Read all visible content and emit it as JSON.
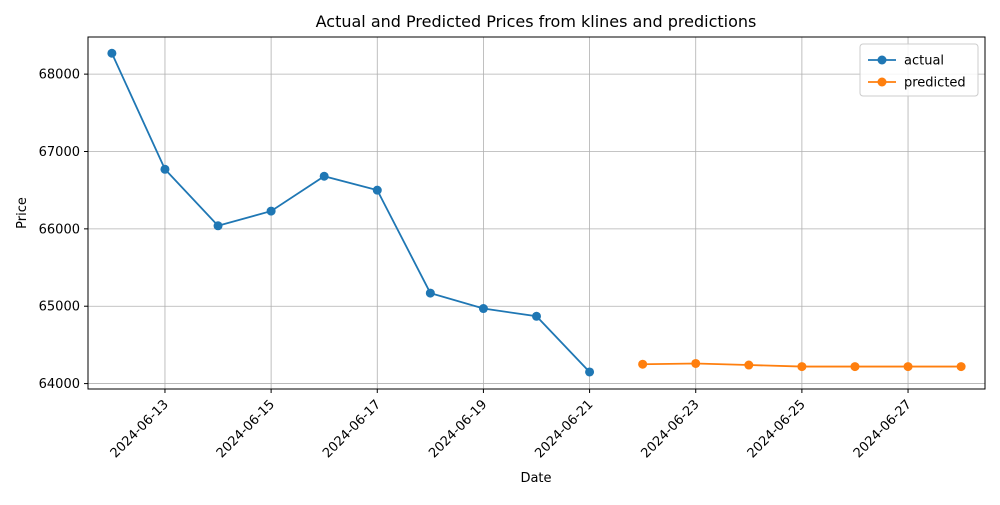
{
  "chart_data": {
    "type": "line",
    "title": "Actual and Predicted Prices from klines and predictions",
    "xlabel": "Date",
    "ylabel": "Price",
    "grid": true,
    "legend_position": "top-right",
    "xlim": [
      "2024-06-11",
      "2024-06-28"
    ],
    "ylim": [
      64000,
      68000
    ],
    "x_ticks": [
      "2024-06-13",
      "2024-06-15",
      "2024-06-17",
      "2024-06-19",
      "2024-06-21",
      "2024-06-23",
      "2024-06-25",
      "2024-06-27"
    ],
    "y_ticks": [
      64000,
      65000,
      66000,
      67000,
      68000
    ],
    "series": [
      {
        "name": "actual",
        "color": "#1f77b4",
        "x": [
          "2024-06-12",
          "2024-06-13",
          "2024-06-14",
          "2024-06-15",
          "2024-06-16",
          "2024-06-17",
          "2024-06-18",
          "2024-06-19",
          "2024-06-20",
          "2024-06-21"
        ],
        "y": [
          68270,
          66770,
          66040,
          66230,
          66680,
          66500,
          65170,
          64970,
          64870,
          64150
        ]
      },
      {
        "name": "predicted",
        "color": "#ff7f0e",
        "x": [
          "2024-06-22",
          "2024-06-23",
          "2024-06-24",
          "2024-06-25",
          "2024-06-26",
          "2024-06-27",
          "2024-06-28"
        ],
        "y": [
          64250,
          64260,
          64240,
          64220,
          64220,
          64220,
          64220
        ]
      }
    ]
  }
}
